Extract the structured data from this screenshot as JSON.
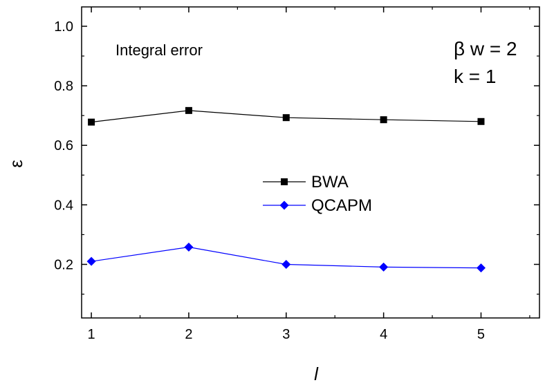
{
  "chart_data": {
    "type": "line",
    "xlabel": "l",
    "ylabel": "ε",
    "xlim": [
      0.9,
      5.6
    ],
    "ylim": [
      0.02,
      1.065
    ],
    "xticks": [
      1,
      2,
      3,
      4,
      5
    ],
    "xtick_labels": [
      "1",
      "2",
      "3",
      "4",
      "5"
    ],
    "yticks": [
      0.2,
      0.4,
      0.6,
      0.8,
      1.0
    ],
    "ytick_labels": [
      "0.2",
      "0.4",
      "0.6",
      "0.8",
      "1.0"
    ],
    "grid": false,
    "legend_position": "center",
    "annotations": {
      "text": "Integral error",
      "param1": "β w = 2",
      "param2": "k = 1"
    },
    "x": [
      1,
      2,
      3,
      4,
      5
    ],
    "series": [
      {
        "name": "BWA",
        "values": [
          0.678,
          0.717,
          0.693,
          0.686,
          0.68
        ],
        "color": "#000000",
        "marker": "square"
      },
      {
        "name": "QCAPM",
        "values": [
          0.21,
          0.258,
          0.2,
          0.191,
          0.188
        ],
        "color": "#0000ff",
        "marker": "diamond"
      }
    ]
  }
}
